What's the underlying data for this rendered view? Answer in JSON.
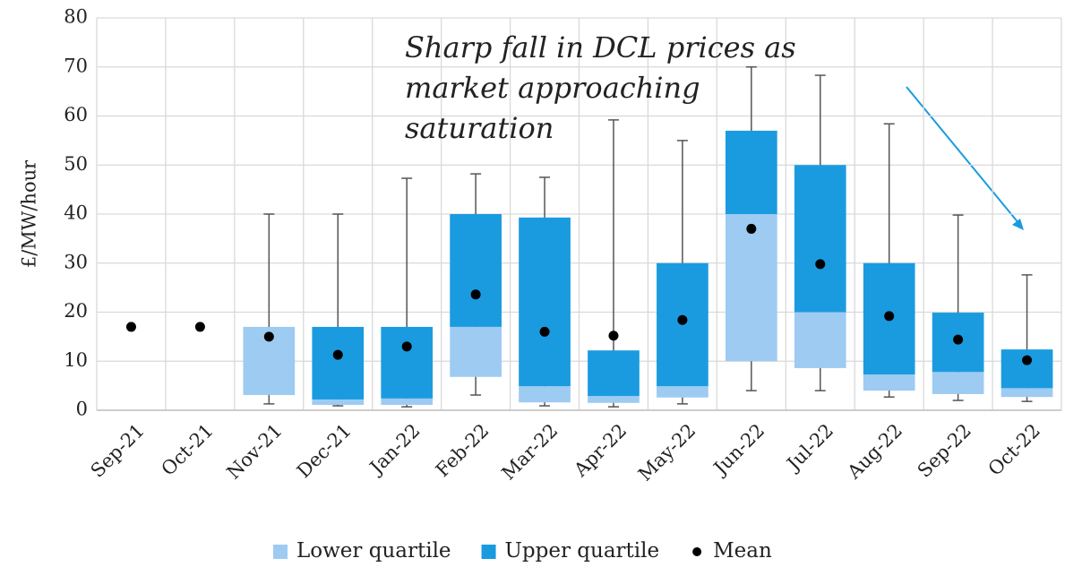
{
  "chart_data": {
    "type": "box",
    "ylabel": "£/MW/hour",
    "annotation": [
      "Sharp fall in DCL prices as",
      "market approaching",
      "saturation"
    ],
    "categories": [
      "Sep-21",
      "Oct-21",
      "Nov-21",
      "Dec-21",
      "Jan-22",
      "Feb-22",
      "Mar-22",
      "Apr-22",
      "May-22",
      "Jun-22",
      "Jul-22",
      "Aug-22",
      "Sep-22",
      "Oct-22"
    ],
    "min": [
      null,
      null,
      1.3,
      0.9,
      0.7,
      3.1,
      0.9,
      0.7,
      1.3,
      4,
      4,
      2.7,
      2,
      1.8
    ],
    "q1": [
      null,
      null,
      3.1,
      1.1,
      1.1,
      6.8,
      1.6,
      1.5,
      2.6,
      10,
      8.6,
      4,
      3.3,
      2.7
    ],
    "median": [
      null,
      null,
      17,
      2.2,
      2.4,
      17,
      4.9,
      2.9,
      4.9,
      40,
      20,
      7.3,
      7.8,
      4.5
    ],
    "q3": [
      null,
      null,
      17,
      17,
      17,
      40,
      39.3,
      12.2,
      30,
      57,
      50,
      30,
      19.9,
      12.4
    ],
    "max": [
      null,
      null,
      40,
      40,
      47.3,
      48.2,
      47.5,
      59.2,
      55,
      70,
      68.3,
      58.4,
      39.8,
      27.6
    ],
    "mean": [
      17,
      17,
      15,
      11.3,
      13,
      23.6,
      16,
      15.2,
      18.4,
      37,
      29.8,
      19.2,
      14.4,
      10.2
    ],
    "series": [
      {
        "name": "Lower quartile",
        "color": "#9dcbf2"
      },
      {
        "name": "Upper quartile",
        "color": "#1a9be0"
      },
      {
        "name": "Mean",
        "color": "#000000"
      }
    ],
    "ylim": [
      0,
      80
    ],
    "yticks": [
      0,
      10,
      20,
      30,
      40,
      50,
      60,
      70,
      80
    ],
    "grid": true
  }
}
